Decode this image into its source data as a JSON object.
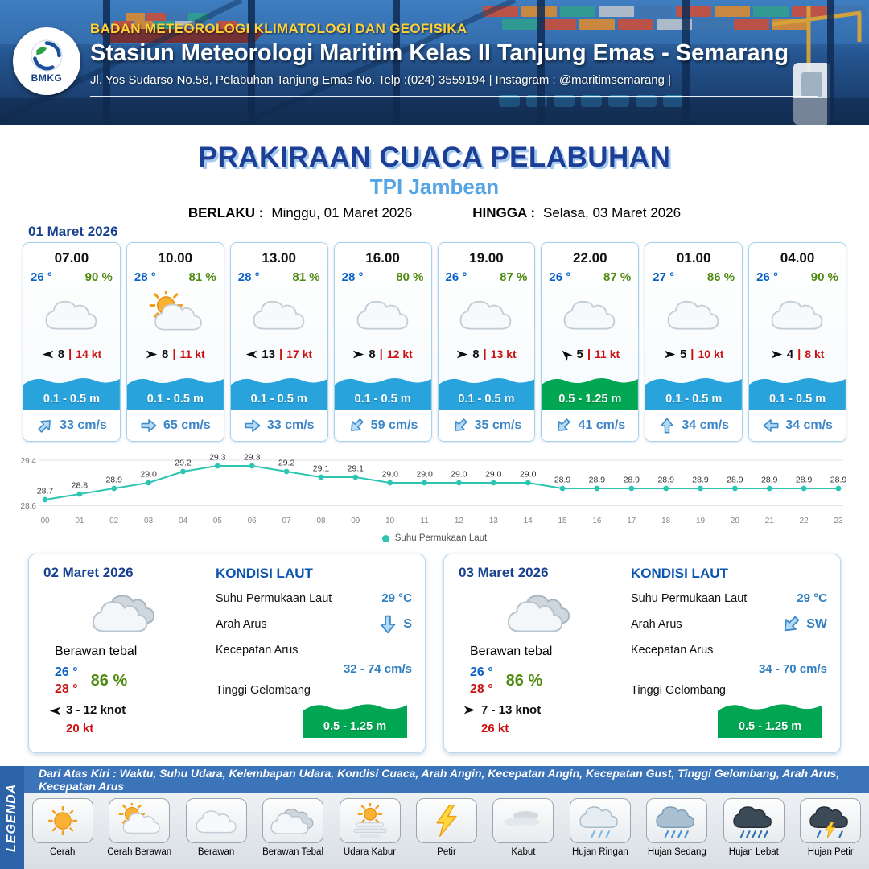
{
  "header": {
    "logo_text": "BMKG",
    "agency": "BADAN METEOROLOGI KLIMATOLOGI DAN GEOFISIKA",
    "station": "Stasiun Meteorologi Maritim Kelas II Tanjung Emas - Semarang",
    "address": "Jl. Yos Sudarso No.58, Pelabuhan Tanjung Emas No. Telp :(024) 3559194 | Instagram : @maritimsemarang |"
  },
  "title": {
    "main": "PRAKIRAAN CUACA PELABUHAN",
    "location": "TPI Jambean",
    "valid_label": "BERLAKU :",
    "valid_value": "Minggu, 01 Maret 2026",
    "until_label": "HINGGA :",
    "until_value": "Selasa, 03 Maret 2026"
  },
  "forecast_date": "01 Maret 2026",
  "hourly": [
    {
      "time": "07.00",
      "temp": "26 °",
      "humidity": "90 %",
      "icon": "berawan",
      "wind_dir": "W",
      "wind_speed": "8",
      "gust": "14 kt",
      "wave": "0.1 - 0.5 m",
      "wave_color": "blue",
      "current_dir": "NE",
      "current": "33 cm/s"
    },
    {
      "time": "10.00",
      "temp": "28 °",
      "humidity": "81 %",
      "icon": "cerah-berawan",
      "wind_dir": "E",
      "wind_speed": "8",
      "gust": "11 kt",
      "wave": "0.1 - 0.5 m",
      "wave_color": "blue",
      "current_dir": "E",
      "current": "65 cm/s"
    },
    {
      "time": "13.00",
      "temp": "28 °",
      "humidity": "81 %",
      "icon": "berawan",
      "wind_dir": "W",
      "wind_speed": "13",
      "gust": "17 kt",
      "wave": "0.1 - 0.5 m",
      "wave_color": "blue",
      "current_dir": "E",
      "current": "33 cm/s"
    },
    {
      "time": "16.00",
      "temp": "28 °",
      "humidity": "80 %",
      "icon": "berawan",
      "wind_dir": "E",
      "wind_speed": "8",
      "gust": "12 kt",
      "wave": "0.1 - 0.5 m",
      "wave_color": "blue",
      "current_dir": "SW",
      "current": "59 cm/s"
    },
    {
      "time": "19.00",
      "temp": "26 °",
      "humidity": "87 %",
      "icon": "berawan",
      "wind_dir": "E",
      "wind_speed": "8",
      "gust": "13 kt",
      "wave": "0.1 - 0.5 m",
      "wave_color": "blue",
      "current_dir": "SW",
      "current": "35 cm/s"
    },
    {
      "time": "22.00",
      "temp": "26 °",
      "humidity": "87 %",
      "icon": "berawan",
      "wind_dir": "NW",
      "wind_speed": "5",
      "gust": "11 kt",
      "wave": "0.5 - 1.25 m",
      "wave_color": "green",
      "current_dir": "SW",
      "current": "41 cm/s"
    },
    {
      "time": "01.00",
      "temp": "27 °",
      "humidity": "86 %",
      "icon": "berawan",
      "wind_dir": "E",
      "wind_speed": "5",
      "gust": "10 kt",
      "wave": "0.1 - 0.5 m",
      "wave_color": "blue",
      "current_dir": "N",
      "current": "34 cm/s"
    },
    {
      "time": "04.00",
      "temp": "26 °",
      "humidity": "90 %",
      "icon": "berawan",
      "wind_dir": "E",
      "wind_speed": "4",
      "gust": "8 kt",
      "wave": "0.1 - 0.5 m",
      "wave_color": "blue",
      "current_dir": "W",
      "current": "34 cm/s"
    }
  ],
  "chart_data": {
    "type": "line",
    "series_name": "Suhu Permukaan Laut",
    "x": [
      "00",
      "01",
      "02",
      "03",
      "04",
      "05",
      "06",
      "07",
      "08",
      "09",
      "10",
      "11",
      "12",
      "13",
      "14",
      "15",
      "16",
      "17",
      "18",
      "19",
      "20",
      "21",
      "22",
      "23"
    ],
    "values": [
      28.7,
      28.8,
      28.9,
      29.0,
      29.2,
      29.3,
      29.3,
      29.2,
      29.1,
      29.1,
      29.0,
      29.0,
      29.0,
      29.0,
      29.0,
      28.9,
      28.9,
      28.9,
      28.9,
      28.9,
      28.9,
      28.9,
      28.9,
      28.9
    ],
    "ylim": [
      28.6,
      29.4
    ],
    "yticks": [
      "29.4",
      "28.6"
    ],
    "line_color": "#2cc5b2",
    "grid": true,
    "legend_position": "bottom"
  },
  "daily": [
    {
      "date": "02 Maret 2026",
      "icon": "berawan-tebal",
      "condition": "Berawan tebal",
      "temp_min": "26 °",
      "temp_max": "28 °",
      "humidity": "86 %",
      "wind_dir": "W",
      "wind_range": "3 - 12 knot",
      "gust": "20 kt",
      "sea": {
        "title": "KONDISI LAUT",
        "sst_label": "Suhu Permukaan Laut",
        "sst": "29 °C",
        "current_dir_label": "Arah Arus",
        "current_dir": "S",
        "current_speed_label": "Kecepatan Arus",
        "current_speed": "32 - 74 cm/s",
        "wave_label": "Tinggi Gelombang",
        "wave": "0.5 - 1.25 m"
      }
    },
    {
      "date": "03 Maret 2026",
      "icon": "berawan-tebal",
      "condition": "Berawan tebal",
      "temp_min": "26 °",
      "temp_max": "28 °",
      "humidity": "86 %",
      "wind_dir": "E",
      "wind_range": "7 - 13 knot",
      "gust": "26 kt",
      "sea": {
        "title": "KONDISI LAUT",
        "sst_label": "Suhu Permukaan Laut",
        "sst": "29 °C",
        "current_dir_label": "Arah Arus",
        "current_dir": "SW",
        "current_speed_label": "Kecepatan Arus",
        "current_speed": "34 - 70 cm/s",
        "wave_label": "Tinggi Gelombang",
        "wave": "0.5 - 1.25 m"
      }
    }
  ],
  "legend": {
    "title": "LEGENDA",
    "description": "Dari Atas Kiri : Waktu, Suhu Udara, Kelembapan Udara, Kondisi Cuaca, Arah Angin, Kecepatan Angin, Kecepatan Gust, Tinggi Gelombang, Arah Arus, Kecepatan Arus",
    "items": [
      {
        "label": "Cerah",
        "icon": "cerah"
      },
      {
        "label": "Cerah Berawan",
        "icon": "cerah-berawan"
      },
      {
        "label": "Berawan",
        "icon": "berawan"
      },
      {
        "label": "Berawan Tebal",
        "icon": "berawan-tebal"
      },
      {
        "label": "Udara Kabur",
        "icon": "udara-kabur"
      },
      {
        "label": "Petir",
        "icon": "petir"
      },
      {
        "label": "Kabut",
        "icon": "kabut"
      },
      {
        "label": "Hujan Ringan",
        "icon": "hujan-ringan"
      },
      {
        "label": "Hujan Sedang",
        "icon": "hujan-sedang"
      },
      {
        "label": "Hujan Lebat",
        "icon": "hujan-lebat"
      },
      {
        "label": "Hujan Petir",
        "icon": "hujan-petir"
      }
    ]
  },
  "colors": {
    "navy": "#1c3e94",
    "light_blue": "#55a4e4",
    "temp_blue": "#0a62c8",
    "humidity_green": "#4f8a10",
    "alert_red": "#cc1111",
    "wave_blue": "#29a3dc",
    "wave_green": "#00a651",
    "current_blue": "#3f86c8",
    "chart_teal": "#2cc5b2",
    "header_yellow": "#ffd23a"
  }
}
